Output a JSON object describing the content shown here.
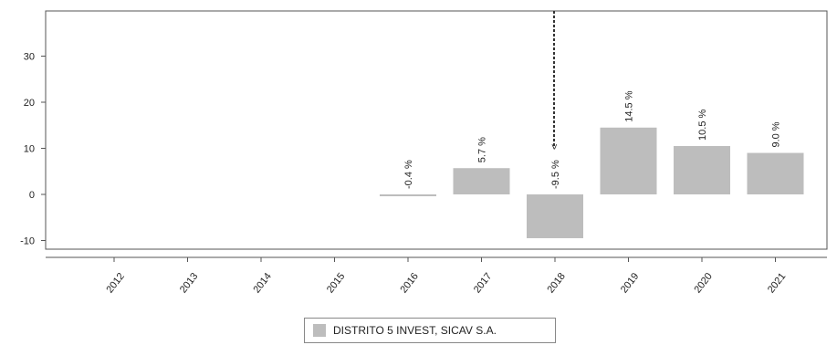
{
  "chart_data": {
    "type": "bar",
    "categories": [
      "2012",
      "2013",
      "2014",
      "2015",
      "2016",
      "2017",
      "2018",
      "2019",
      "2020",
      "2021"
    ],
    "series": [
      {
        "name": "DISTRITO 5 INVEST, SICAV S.A.",
        "values": [
          null,
          null,
          null,
          null,
          -0.4,
          5.7,
          -9.5,
          14.5,
          10.5,
          9.0
        ],
        "labels": [
          "",
          "",
          "",
          "",
          "-0.4 %",
          "5.7 %",
          "-9.5 %",
          "14.5 %",
          "10.5 %",
          "9.0 %"
        ],
        "color": "#bdbdbd"
      }
    ],
    "yticks": [
      "30",
      "20",
      "10",
      "0",
      "-10"
    ],
    "ylim": [
      -13,
      40
    ],
    "grid": false,
    "legend": "bottom-center",
    "marker_category": "2018",
    "marker_label": "<"
  }
}
